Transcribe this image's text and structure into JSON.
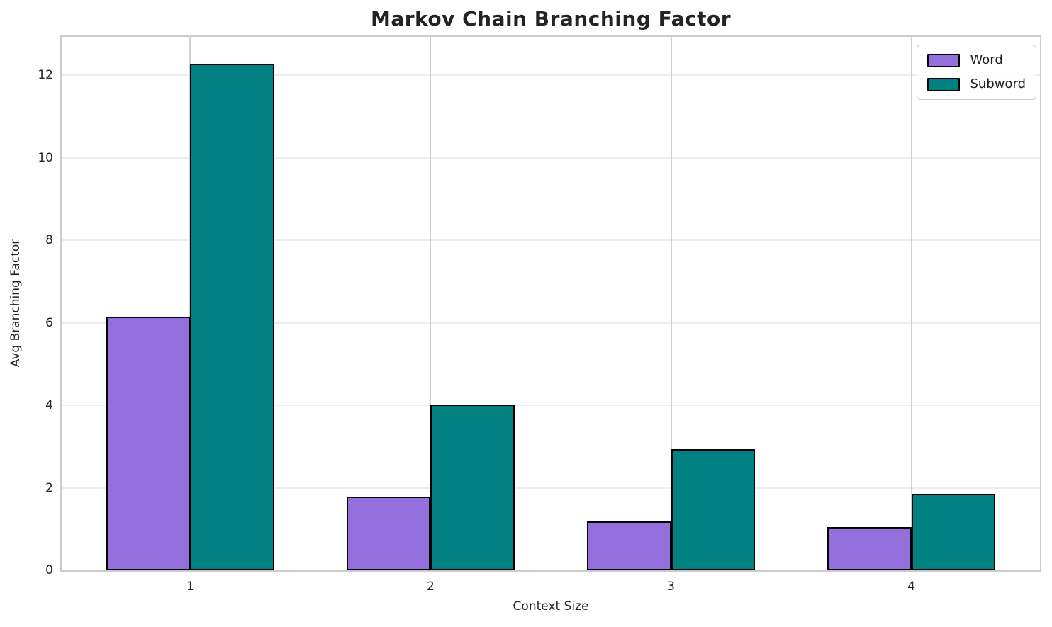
{
  "chart_data": {
    "type": "bar",
    "title": "Markov Chain Branching Factor",
    "xlabel": "Context Size",
    "ylabel": "Avg Branching Factor",
    "categories": [
      "1",
      "2",
      "3",
      "4"
    ],
    "series": [
      {
        "name": "Word",
        "color": "#9370DB",
        "values": [
          6.15,
          1.78,
          1.18,
          1.04
        ]
      },
      {
        "name": "Subword",
        "color": "#008080",
        "values": [
          12.28,
          4.02,
          2.94,
          1.86
        ]
      }
    ],
    "bar_edge_color": "#000000",
    "bar_width": 0.35,
    "xlim": [
      -0.535,
      3.535
    ],
    "ylim": [
      0,
      12.93
    ],
    "yticks": [
      0,
      2,
      4,
      6,
      8,
      10,
      12
    ],
    "grid": true,
    "legend_position": "upper right"
  }
}
